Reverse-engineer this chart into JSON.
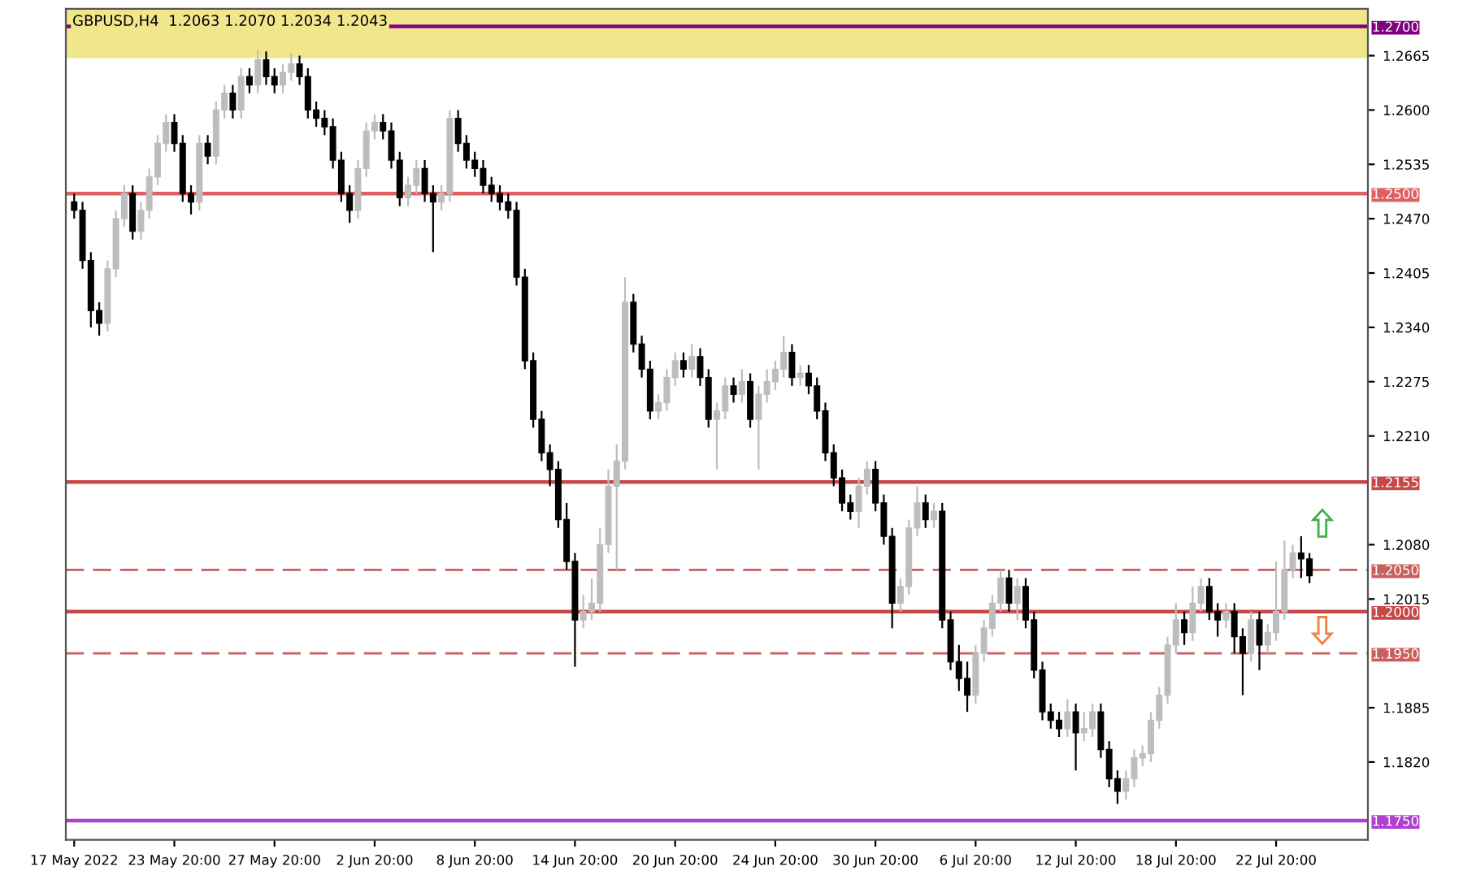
{
  "chart_data": {
    "type": "candlestick",
    "title": "GBPUSD,H4  1.2063 1.2070 1.2034 1.2043",
    "categories": [
      "17 May 2022",
      null,
      null,
      null,
      null,
      null,
      null,
      null,
      null,
      null,
      null,
      null,
      "23 May 20:00",
      null,
      null,
      null,
      null,
      null,
      null,
      null,
      null,
      null,
      null,
      null,
      "27 May 20:00",
      null,
      null,
      null,
      null,
      null,
      null,
      null,
      null,
      null,
      null,
      null,
      "2 Jun 20:00",
      null,
      null,
      null,
      null,
      null,
      null,
      null,
      null,
      null,
      null,
      null,
      "8 Jun 20:00",
      null,
      null,
      null,
      null,
      null,
      null,
      null,
      null,
      null,
      null,
      null,
      "14 Jun 20:00",
      null,
      null,
      null,
      null,
      null,
      null,
      null,
      null,
      null,
      null,
      null,
      "20 Jun 20:00",
      null,
      null,
      null,
      null,
      null,
      null,
      null,
      null,
      null,
      null,
      null,
      "24 Jun 20:00",
      null,
      null,
      null,
      null,
      null,
      null,
      null,
      null,
      null,
      null,
      null,
      "30 Jun 20:00",
      null,
      null,
      null,
      null,
      null,
      null,
      null,
      null,
      null,
      null,
      null,
      "6 Jul 20:00",
      null,
      null,
      null,
      null,
      null,
      null,
      null,
      null,
      null,
      null,
      null,
      "12 Jul 20:00",
      null,
      null,
      null,
      null,
      null,
      null,
      null,
      null,
      null,
      null,
      null,
      "18 Jul 20:00",
      null,
      null,
      null,
      null,
      null,
      null,
      null,
      null,
      null,
      null,
      null,
      "22 Jul 20:00",
      null,
      null,
      null,
      null
    ],
    "ohlc": [
      [
        1.249,
        1.25,
        1.247,
        1.248
      ],
      [
        1.248,
        1.249,
        1.241,
        1.242
      ],
      [
        1.242,
        1.243,
        1.234,
        1.236
      ],
      [
        1.236,
        1.237,
        1.233,
        1.2345
      ],
      [
        1.2345,
        1.242,
        1.2335,
        1.241
      ],
      [
        1.241,
        1.248,
        1.24,
        1.247
      ],
      [
        1.247,
        1.251,
        1.246,
        1.25
      ],
      [
        1.25,
        1.251,
        1.2445,
        1.2455
      ],
      [
        1.2455,
        1.249,
        1.2445,
        1.248
      ],
      [
        1.248,
        1.253,
        1.247,
        1.252
      ],
      [
        1.252,
        1.257,
        1.251,
        1.256
      ],
      [
        1.256,
        1.2595,
        1.255,
        1.2585
      ],
      [
        1.2585,
        1.2595,
        1.255,
        1.256
      ],
      [
        1.256,
        1.257,
        1.249,
        1.25
      ],
      [
        1.25,
        1.251,
        1.2475,
        1.249
      ],
      [
        1.249,
        1.257,
        1.248,
        1.256
      ],
      [
        1.256,
        1.257,
        1.2535,
        1.2545
      ],
      [
        1.2545,
        1.261,
        1.2535,
        1.26
      ],
      [
        1.26,
        1.263,
        1.259,
        1.262
      ],
      [
        1.262,
        1.263,
        1.259,
        1.26
      ],
      [
        1.26,
        1.265,
        1.259,
        1.264
      ],
      [
        1.264,
        1.265,
        1.262,
        1.263
      ],
      [
        1.263,
        1.2672,
        1.262,
        1.266
      ],
      [
        1.266,
        1.267,
        1.263,
        1.264
      ],
      [
        1.264,
        1.265,
        1.262,
        1.263
      ],
      [
        1.263,
        1.2655,
        1.262,
        1.2645
      ],
      [
        1.2645,
        1.2668,
        1.2635,
        1.2655
      ],
      [
        1.2655,
        1.2665,
        1.263,
        1.264
      ],
      [
        1.264,
        1.265,
        1.259,
        1.26
      ],
      [
        1.26,
        1.261,
        1.258,
        1.259
      ],
      [
        1.259,
        1.26,
        1.257,
        1.258
      ],
      [
        1.258,
        1.259,
        1.253,
        1.254
      ],
      [
        1.254,
        1.255,
        1.249,
        1.25
      ],
      [
        1.25,
        1.251,
        1.2465,
        1.248
      ],
      [
        1.248,
        1.254,
        1.247,
        1.253
      ],
      [
        1.253,
        1.2585,
        1.252,
        1.2575
      ],
      [
        1.2575,
        1.2595,
        1.2565,
        1.2585
      ],
      [
        1.2585,
        1.2595,
        1.2565,
        1.2575
      ],
      [
        1.2575,
        1.2585,
        1.253,
        1.254
      ],
      [
        1.254,
        1.255,
        1.2485,
        1.2495
      ],
      [
        1.2495,
        1.252,
        1.2485,
        1.251
      ],
      [
        1.251,
        1.254,
        1.25,
        1.253
      ],
      [
        1.253,
        1.254,
        1.249,
        1.25
      ],
      [
        1.25,
        1.251,
        1.243,
        1.249
      ],
      [
        1.249,
        1.251,
        1.248,
        1.25
      ],
      [
        1.25,
        1.26,
        1.249,
        1.259
      ],
      [
        1.259,
        1.26,
        1.255,
        1.256
      ],
      [
        1.256,
        1.257,
        1.253,
        1.254
      ],
      [
        1.254,
        1.255,
        1.252,
        1.253
      ],
      [
        1.253,
        1.254,
        1.25,
        1.251
      ],
      [
        1.251,
        1.252,
        1.249,
        1.25
      ],
      [
        1.25,
        1.251,
        1.248,
        1.249
      ],
      [
        1.249,
        1.25,
        1.247,
        1.248
      ],
      [
        1.248,
        1.249,
        1.239,
        1.24
      ],
      [
        1.24,
        1.241,
        1.229,
        1.23
      ],
      [
        1.23,
        1.231,
        1.222,
        1.223
      ],
      [
        1.223,
        1.224,
        1.218,
        1.219
      ],
      [
        1.219,
        1.22,
        1.215,
        1.217
      ],
      [
        1.217,
        1.218,
        1.21,
        1.211
      ],
      [
        1.211,
        1.213,
        1.205,
        1.206
      ],
      [
        1.206,
        1.207,
        1.1934,
        1.199
      ],
      [
        1.199,
        1.202,
        1.198,
        1.2
      ],
      [
        1.2,
        1.204,
        1.199,
        1.201
      ],
      [
        1.201,
        1.21,
        1.2,
        1.208
      ],
      [
        1.208,
        1.217,
        1.207,
        1.215
      ],
      [
        1.215,
        1.22,
        1.205,
        1.218
      ],
      [
        1.218,
        1.24,
        1.217,
        1.237
      ],
      [
        1.237,
        1.238,
        1.231,
        1.232
      ],
      [
        1.232,
        1.233,
        1.228,
        1.229
      ],
      [
        1.229,
        1.23,
        1.223,
        1.224
      ],
      [
        1.224,
        1.226,
        1.223,
        1.225
      ],
      [
        1.225,
        1.229,
        1.224,
        1.228
      ],
      [
        1.228,
        1.231,
        1.227,
        1.23
      ],
      [
        1.23,
        1.231,
        1.228,
        1.229
      ],
      [
        1.229,
        1.232,
        1.228,
        1.2305
      ],
      [
        1.2305,
        1.2315,
        1.227,
        1.228
      ],
      [
        1.228,
        1.229,
        1.222,
        1.223
      ],
      [
        1.223,
        1.225,
        1.217,
        1.224
      ],
      [
        1.224,
        1.228,
        1.223,
        1.227
      ],
      [
        1.227,
        1.228,
        1.225,
        1.226
      ],
      [
        1.226,
        1.229,
        1.225,
        1.2275
      ],
      [
        1.2275,
        1.2285,
        1.222,
        1.223
      ],
      [
        1.223,
        1.227,
        1.217,
        1.226
      ],
      [
        1.226,
        1.229,
        1.225,
        1.2275
      ],
      [
        1.2275,
        1.23,
        1.2265,
        1.229
      ],
      [
        1.229,
        1.233,
        1.228,
        1.231
      ],
      [
        1.231,
        1.232,
        1.227,
        1.228
      ],
      [
        1.228,
        1.2295,
        1.227,
        1.2285
      ],
      [
        1.2285,
        1.2295,
        1.226,
        1.227
      ],
      [
        1.227,
        1.228,
        1.223,
        1.224
      ],
      [
        1.224,
        1.225,
        1.218,
        1.219
      ],
      [
        1.219,
        1.22,
        1.215,
        1.216
      ],
      [
        1.216,
        1.217,
        1.212,
        1.213
      ],
      [
        1.213,
        1.214,
        1.211,
        1.212
      ],
      [
        1.212,
        1.216,
        1.21,
        1.215
      ],
      [
        1.215,
        1.218,
        1.214,
        1.217
      ],
      [
        1.217,
        1.218,
        1.212,
        1.213
      ],
      [
        1.213,
        1.214,
        1.208,
        1.209
      ],
      [
        1.209,
        1.21,
        1.198,
        1.201
      ],
      [
        1.201,
        1.204,
        1.2,
        1.203
      ],
      [
        1.203,
        1.211,
        1.202,
        1.21
      ],
      [
        1.21,
        1.215,
        1.209,
        1.213
      ],
      [
        1.213,
        1.214,
        1.21,
        1.211
      ],
      [
        1.211,
        1.213,
        1.21,
        1.212
      ],
      [
        1.212,
        1.213,
        1.198,
        1.199
      ],
      [
        1.199,
        1.2,
        1.193,
        1.194
      ],
      [
        1.194,
        1.196,
        1.1905,
        1.192
      ],
      [
        1.192,
        1.194,
        1.188,
        1.19
      ],
      [
        1.19,
        1.196,
        1.189,
        1.195
      ],
      [
        1.195,
        1.199,
        1.194,
        1.198
      ],
      [
        1.198,
        1.202,
        1.197,
        1.201
      ],
      [
        1.201,
        1.205,
        1.2,
        1.204
      ],
      [
        1.204,
        1.205,
        1.2,
        1.201
      ],
      [
        1.201,
        1.204,
        1.199,
        1.203
      ],
      [
        1.203,
        1.204,
        1.198,
        1.199
      ],
      [
        1.199,
        1.2,
        1.192,
        1.193
      ],
      [
        1.193,
        1.194,
        1.187,
        1.188
      ],
      [
        1.188,
        1.189,
        1.186,
        1.187
      ],
      [
        1.187,
        1.188,
        1.185,
        1.186
      ],
      [
        1.186,
        1.1895,
        1.185,
        1.188
      ],
      [
        1.188,
        1.189,
        1.181,
        1.1855
      ],
      [
        1.1855,
        1.188,
        1.1845,
        1.186
      ],
      [
        1.186,
        1.189,
        1.185,
        1.188
      ],
      [
        1.188,
        1.189,
        1.1825,
        1.1835
      ],
      [
        1.1835,
        1.1845,
        1.179,
        1.18
      ],
      [
        1.18,
        1.181,
        1.177,
        1.1785
      ],
      [
        1.1785,
        1.181,
        1.1775,
        1.18
      ],
      [
        1.18,
        1.1835,
        1.179,
        1.1825
      ],
      [
        1.1825,
        1.184,
        1.1815,
        1.183
      ],
      [
        1.183,
        1.188,
        1.182,
        1.187
      ],
      [
        1.187,
        1.191,
        1.186,
        1.19
      ],
      [
        1.19,
        1.197,
        1.189,
        1.196
      ],
      [
        1.196,
        1.201,
        1.195,
        1.199
      ],
      [
        1.199,
        1.2,
        1.196,
        1.1975
      ],
      [
        1.1975,
        1.203,
        1.1965,
        1.201
      ],
      [
        1.201,
        1.204,
        1.2,
        1.203
      ],
      [
        1.203,
        1.204,
        1.199,
        1.2
      ],
      [
        1.2,
        1.201,
        1.197,
        1.199
      ],
      [
        1.199,
        1.201,
        1.198,
        1.2
      ],
      [
        1.2,
        1.201,
        1.195,
        1.197
      ],
      [
        1.197,
        1.198,
        1.19,
        1.195
      ],
      [
        1.195,
        1.2,
        1.194,
        1.199
      ],
      [
        1.199,
        1.2,
        1.193,
        1.196
      ],
      [
        1.196,
        1.1985,
        1.195,
        1.1975
      ],
      [
        1.1975,
        1.206,
        1.1965,
        1.2
      ],
      [
        1.2,
        1.2085,
        1.199,
        1.205
      ],
      [
        1.205,
        1.208,
        1.204,
        1.207
      ],
      [
        1.207,
        1.209,
        1.204,
        1.2063
      ],
      [
        1.2063,
        1.207,
        1.2034,
        1.2043
      ]
    ],
    "colors": [
      "#000000",
      "#000000",
      "#000000",
      "#000000",
      "#bdbdbd",
      "#bdbdbd",
      "#bdbdbd",
      "#000000",
      "#bdbdbd",
      "#bdbdbd",
      "#bdbdbd",
      "#bdbdbd",
      "#000000",
      "#000000",
      "#000000",
      "#bdbdbd",
      "#000000",
      "#bdbdbd",
      "#bdbdbd",
      "#000000",
      "#bdbdbd",
      "#000000",
      "#bdbdbd",
      "#000000",
      "#000000",
      "#bdbdbd",
      "#bdbdbd",
      "#000000",
      "#000000",
      "#000000",
      "#000000",
      "#000000",
      "#000000",
      "#000000",
      "#bdbdbd",
      "#bdbdbd",
      "#bdbdbd",
      "#000000",
      "#000000",
      "#000000",
      "#bdbdbd",
      "#bdbdbd",
      "#000000",
      "#000000",
      "#bdbdbd",
      "#bdbdbd",
      "#000000",
      "#000000",
      "#000000",
      "#000000",
      "#000000",
      "#000000",
      "#000000",
      "#000000",
      "#000000",
      "#000000",
      "#000000",
      "#000000",
      "#000000",
      "#000000",
      "#000000",
      "#bdbdbd",
      "#bdbdbd",
      "#bdbdbd",
      "#bdbdbd",
      "#bdbdbd",
      "#bdbdbd",
      "#000000",
      "#000000",
      "#000000",
      "#bdbdbd",
      "#bdbdbd",
      "#bdbdbd",
      "#000000",
      "#bdbdbd",
      "#000000",
      "#000000",
      "#bdbdbd",
      "#bdbdbd",
      "#000000",
      "#bdbdbd",
      "#000000",
      "#bdbdbd",
      "#bdbdbd",
      "#bdbdbd",
      "#bdbdbd",
      "#000000",
      "#bdbdbd",
      "#000000",
      "#000000",
      "#000000",
      "#000000",
      "#000000",
      "#000000",
      "#bdbdbd",
      "#bdbdbd",
      "#000000",
      "#000000",
      "#000000",
      "#bdbdbd",
      "#bdbdbd",
      "#bdbdbd",
      "#000000",
      "#bdbdbd",
      "#000000",
      "#000000",
      "#000000",
      "#000000",
      "#bdbdbd",
      "#bdbdbd",
      "#bdbdbd",
      "#bdbdbd",
      "#000000",
      "#bdbdbd",
      "#000000",
      "#000000",
      "#000000",
      "#000000",
      "#000000",
      "#bdbdbd",
      "#000000",
      "#bdbdbd",
      "#bdbdbd",
      "#000000",
      "#000000",
      "#000000",
      "#bdbdbd",
      "#bdbdbd",
      "#bdbdbd",
      "#bdbdbd",
      "#bdbdbd",
      "#bdbdbd",
      "#bdbdbd",
      "#000000",
      "#bdbdbd",
      "#bdbdbd",
      "#000000",
      "#000000",
      "#bdbdbd",
      "#000000",
      "#000000",
      "#bdbdbd",
      "#000000",
      "#bdbdbd",
      "#bdbdbd",
      "#bdbdbd",
      "#bdbdbd",
      "#000000",
      "#000000"
    ],
    "ylim": [
      1.1727,
      1.2721
    ],
    "yticks": [
      {
        "value": 1.182,
        "label": "1.1820"
      },
      1.1885,
      1.2015,
      {
        "value": 1.208,
        "label": "1.2080"
      },
      {
        "value": 1.221,
        "label": "1.2210"
      },
      1.2275,
      {
        "value": 1.234,
        "label": "1.2340"
      },
      1.2405,
      {
        "value": 1.247,
        "label": "1.2470"
      },
      1.2535,
      {
        "value": 1.26,
        "label": "1.2600"
      },
      1.2665
    ],
    "ref_lines": [
      {
        "axis": "y",
        "value": 1.27,
        "label": "1.2700",
        "color": "#800080",
        "line_style": "solid"
      },
      {
        "axis": "y",
        "value": 1.25,
        "label": "1.2500",
        "color": "#e06060",
        "line_style": "solid"
      },
      {
        "axis": "y",
        "value": 1.2155,
        "label": "1.2155",
        "color": "#c84848",
        "line_style": "solid"
      },
      {
        "axis": "y",
        "value": 1.205,
        "label": "1.2050",
        "color": "#c86060",
        "line_style": "dashed"
      },
      {
        "axis": "y",
        "value": 1.2,
        "label": "1.2000",
        "color": "#c84848",
        "line_style": "solid"
      },
      {
        "axis": "y",
        "value": 1.195,
        "label": "1.1950",
        "color": "#c86060",
        "line_style": "dashed"
      },
      {
        "axis": "y",
        "value": 1.175,
        "label": "1.1750",
        "color": "#b040d0",
        "line_style": "solid"
      }
    ],
    "bands": [
      {
        "axis": "y",
        "from": 1.2662,
        "to": 1.2721,
        "color": "#f0e68c"
      }
    ],
    "grid": false
  }
}
